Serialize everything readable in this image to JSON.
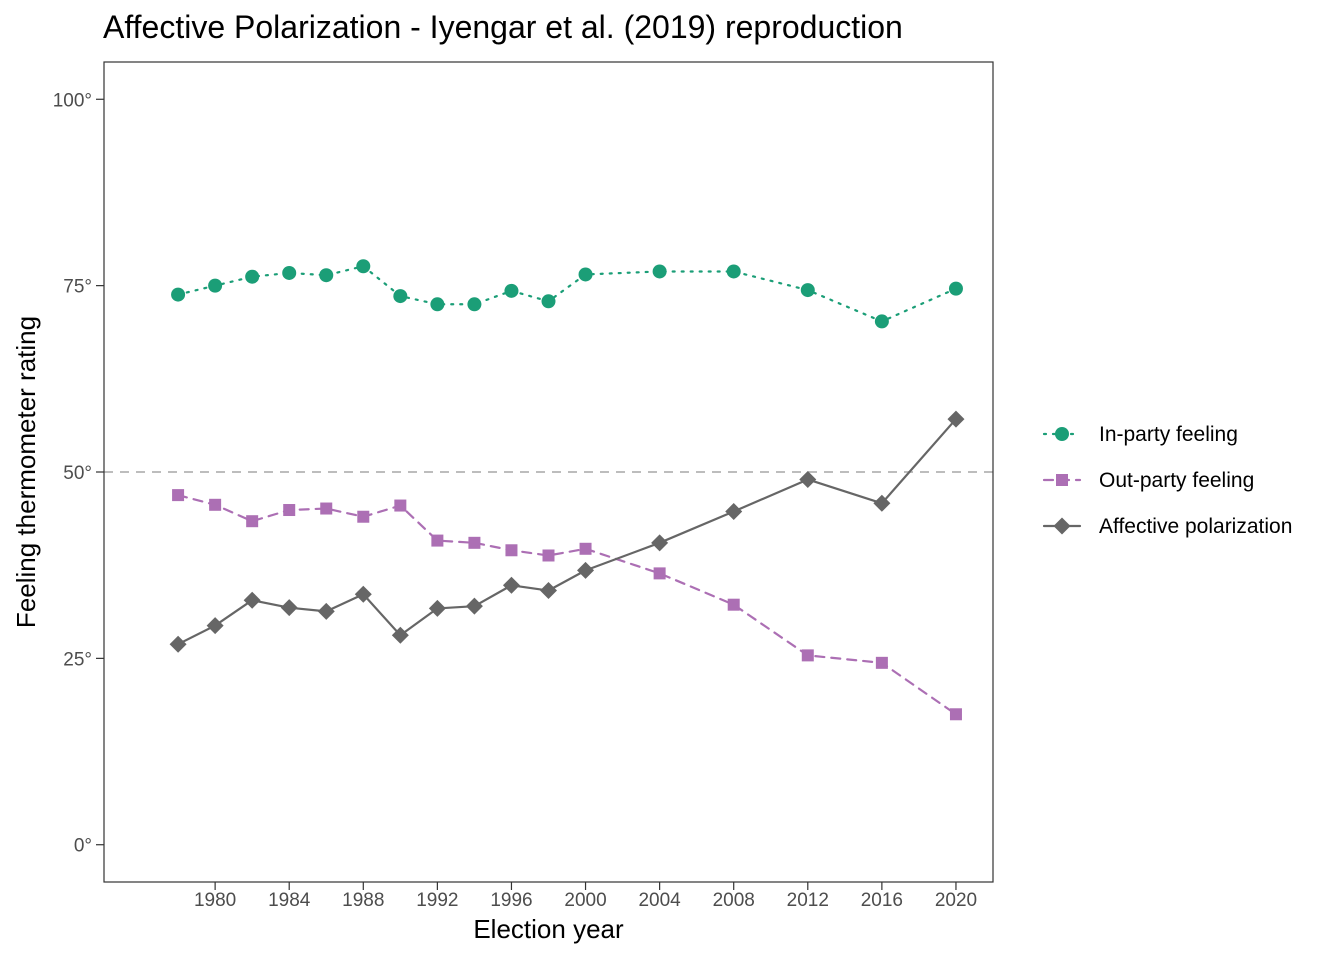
{
  "chart_data": {
    "type": "line",
    "title": "Affective Polarization - Iyengar et al. (2019) reproduction",
    "xlabel": "Election year",
    "ylabel": "Feeling thermometer rating",
    "x": [
      1978,
      1980,
      1982,
      1984,
      1986,
      1988,
      1990,
      1992,
      1994,
      1996,
      1998,
      2000,
      2004,
      2008,
      2012,
      2016,
      2020
    ],
    "xticks": [
      1980,
      1984,
      1988,
      1992,
      1996,
      2000,
      2004,
      2008,
      2012,
      2016,
      2020
    ],
    "xlim": [
      1974,
      2022
    ],
    "ylim": [
      -5,
      105
    ],
    "yticks": [
      0,
      25,
      50,
      75,
      100
    ],
    "ytick_labels": [
      "0°",
      "25°",
      "50°",
      "75°",
      "100°"
    ],
    "reference_line": 50,
    "grid": false,
    "legend_position": "right",
    "series": [
      {
        "name": "In-party feeling",
        "color": "#1b9e77",
        "line_style": "dotted",
        "marker": "circle",
        "values": [
          73.8,
          75.0,
          76.2,
          76.7,
          76.4,
          77.6,
          73.6,
          72.5,
          72.5,
          74.3,
          72.9,
          76.5,
          76.9,
          76.9,
          74.4,
          70.2,
          74.6
        ]
      },
      {
        "name": "Out-party feeling",
        "color": "#ac6fb4",
        "line_style": "dashed",
        "marker": "square",
        "values": [
          46.9,
          45.6,
          43.4,
          44.9,
          45.1,
          44.0,
          45.5,
          40.8,
          40.5,
          39.5,
          38.8,
          39.7,
          36.4,
          32.2,
          25.4,
          24.4,
          17.5
        ]
      },
      {
        "name": "Affective polarization",
        "color": "#666666",
        "line_style": "solid",
        "marker": "diamond",
        "values": [
          26.9,
          29.4,
          32.8,
          31.8,
          31.3,
          33.6,
          28.1,
          31.7,
          32.0,
          34.8,
          34.1,
          36.8,
          40.5,
          44.7,
          49.0,
          45.8,
          57.1
        ]
      }
    ]
  }
}
